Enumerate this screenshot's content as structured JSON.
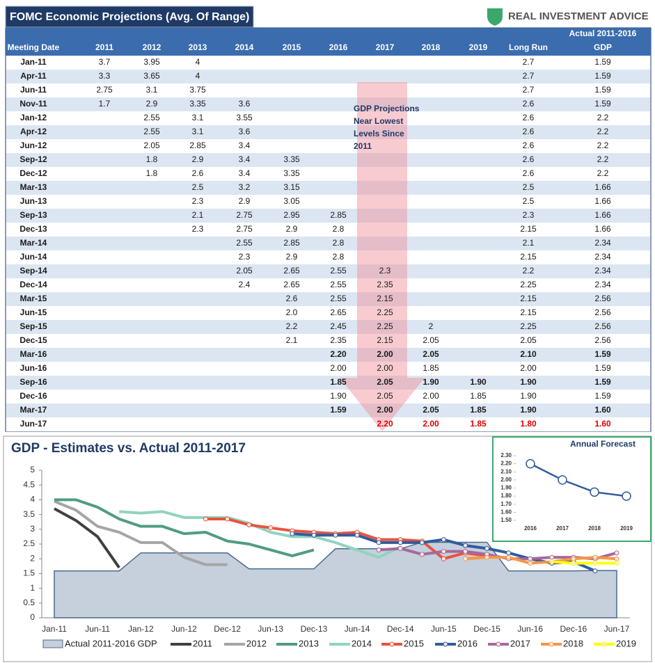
{
  "header": {
    "title": "FOMC Economic Projections (Avg. Of Range)",
    "brand": "REAL INVESTMENT ADVICE"
  },
  "table": {
    "group_header": "Actual 2011-2016",
    "columns": [
      "Meeting Date",
      "2011",
      "2012",
      "2013",
      "2014",
      "2015",
      "2016",
      "2017",
      "2018",
      "2019",
      "Long Run",
      "GDP"
    ],
    "annotation": [
      "GDP Projections",
      "Near Lowest",
      "Levels  Since",
      "2011"
    ],
    "rows": [
      [
        "Jan-11",
        "3.7",
        "3.95",
        "4",
        null,
        null,
        null,
        null,
        null,
        null,
        "2.7",
        "1.59"
      ],
      [
        "Apr-11",
        "3.3",
        "3.65",
        "4",
        null,
        null,
        null,
        null,
        null,
        null,
        "2.7",
        "1.59"
      ],
      [
        "Jun-11",
        "2.75",
        "3.1",
        "3.75",
        null,
        null,
        null,
        null,
        null,
        null,
        "2.7",
        "1.59"
      ],
      [
        "Nov-11",
        "1.7",
        "2.9",
        "3.35",
        "3.6",
        null,
        null,
        null,
        null,
        null,
        "2.6",
        "1.59"
      ],
      [
        "Jan-12",
        null,
        "2.55",
        "3.1",
        "3.55",
        null,
        null,
        null,
        null,
        null,
        "2.6",
        "2.2"
      ],
      [
        "Apr-12",
        null,
        "2.55",
        "3.1",
        "3.6",
        null,
        null,
        null,
        null,
        null,
        "2.6",
        "2.2"
      ],
      [
        "Jun-12",
        null,
        "2.05",
        "2.85",
        "3.4",
        null,
        null,
        null,
        null,
        null,
        "2.6",
        "2.2"
      ],
      [
        "Sep-12",
        null,
        "1.8",
        "2.9",
        "3.4",
        "3.35",
        null,
        null,
        null,
        null,
        "2.6",
        "2.2"
      ],
      [
        "Dec-12",
        null,
        "1.8",
        "2.6",
        "3.4",
        "3.35",
        null,
        null,
        null,
        null,
        "2.6",
        "2.2"
      ],
      [
        "Mar-13",
        null,
        null,
        "2.5",
        "3.2",
        "3.15",
        null,
        null,
        null,
        null,
        "2.5",
        "1.66"
      ],
      [
        "Jun-13",
        null,
        null,
        "2.3",
        "2.9",
        "3.05",
        null,
        null,
        null,
        null,
        "2.5",
        "1.66"
      ],
      [
        "Sep-13",
        null,
        null,
        "2.1",
        "2.75",
        "2.95",
        "2.85",
        null,
        null,
        null,
        "2.3",
        "1.66"
      ],
      [
        "Dec-13",
        null,
        null,
        "2.3",
        "2.75",
        "2.9",
        "2.8",
        null,
        null,
        null,
        "2.15",
        "1.66"
      ],
      [
        "Mar-14",
        null,
        null,
        null,
        "2.55",
        "2.85",
        "2.8",
        null,
        null,
        null,
        "2.1",
        "2.34"
      ],
      [
        "Jun-14",
        null,
        null,
        null,
        "2.3",
        "2.9",
        "2.8",
        null,
        null,
        null,
        "2.15",
        "2.34"
      ],
      [
        "Sep-14",
        null,
        null,
        null,
        "2.05",
        "2.65",
        "2.55",
        "2.3",
        null,
        null,
        "2.2",
        "2.34"
      ],
      [
        "Dec-14",
        null,
        null,
        null,
        "2.4",
        "2.65",
        "2.55",
        "2.35",
        null,
        null,
        "2.25",
        "2.34"
      ],
      [
        "Mar-15",
        null,
        null,
        null,
        null,
        "2.6",
        "2.55",
        "2.15",
        null,
        null,
        "2.15",
        "2.56"
      ],
      [
        "Jun-15",
        null,
        null,
        null,
        null,
        "2.0",
        "2.65",
        "2.25",
        null,
        null,
        "2.15",
        "2.56"
      ],
      [
        "Sep-15",
        null,
        null,
        null,
        null,
        "2.2",
        "2.45",
        "2.25",
        "2",
        null,
        "2.25",
        "2.56"
      ],
      [
        "Dec-15",
        null,
        null,
        null,
        null,
        "2.1",
        "2.35",
        "2.15",
        "2.05",
        null,
        "2.05",
        "2.56"
      ],
      [
        "Mar-16",
        null,
        null,
        null,
        null,
        null,
        "2.20",
        "2.00",
        "2.05",
        null,
        "2.10",
        "1.59"
      ],
      [
        "Jun-16",
        null,
        null,
        null,
        null,
        null,
        "2.00",
        "2.00",
        "1.85",
        null,
        "2.00",
        "1.59"
      ],
      [
        "Sep-16",
        null,
        null,
        null,
        null,
        null,
        "1.85",
        "2.05",
        "1.90",
        "1.90",
        "1.90",
        "1.59"
      ],
      [
        "Dec-16",
        null,
        null,
        null,
        null,
        null,
        "1.90",
        "2.05",
        "2.00",
        "1.85",
        "1.90",
        "1.59"
      ],
      [
        "Mar-17",
        null,
        null,
        null,
        null,
        null,
        "1.59",
        "2.00",
        "2.05",
        "1.85",
        "1.90",
        "1.60"
      ],
      [
        "Jun-17",
        null,
        null,
        null,
        null,
        null,
        null,
        "2.20",
        "2.00",
        "1.85",
        "1.80",
        "1.60"
      ]
    ]
  },
  "chart_data": [
    {
      "type": "line",
      "title": "GDP - Estimates vs. Actual 2011-2017",
      "categories": [
        "Jan-11",
        null,
        "Jun-11",
        null,
        "Jan-12",
        null,
        "Jun-12",
        null,
        "Dec-12",
        null,
        "Jun-13",
        null,
        "Dec-13",
        null,
        "Jun-14",
        null,
        "Dec-14",
        null,
        "Jun-15",
        null,
        "Dec-15",
        null,
        "Jun-16",
        null,
        "Dec-16",
        null,
        "Jun-17"
      ],
      "ylim": [
        0,
        5
      ],
      "yticks": [
        0,
        0.5,
        1,
        1.5,
        2,
        2.5,
        3,
        3.5,
        4,
        4.5,
        5
      ],
      "series": [
        {
          "name": "Actual 2011-2016 GDP",
          "kind": "area",
          "color": "#c5d0dc",
          "values": [
            1.59,
            1.59,
            1.59,
            1.59,
            2.2,
            2.2,
            2.2,
            2.2,
            2.2,
            1.66,
            1.66,
            1.66,
            1.66,
            2.34,
            2.34,
            2.34,
            2.34,
            2.56,
            2.56,
            2.56,
            2.56,
            1.59,
            1.59,
            1.59,
            1.59,
            1.6,
            1.6
          ]
        },
        {
          "name": "2011",
          "kind": "line",
          "color": "#404040",
          "markers": false,
          "values": [
            3.7,
            3.3,
            2.75,
            1.7,
            null,
            null,
            null,
            null,
            null,
            null,
            null,
            null,
            null,
            null,
            null,
            null,
            null,
            null,
            null,
            null,
            null,
            null,
            null,
            null,
            null,
            null,
            null
          ]
        },
        {
          "name": "2012",
          "kind": "line",
          "color": "#a5a5a5",
          "markers": false,
          "values": [
            3.95,
            3.65,
            3.1,
            2.9,
            2.55,
            2.55,
            2.05,
            1.8,
            1.8,
            null,
            null,
            null,
            null,
            null,
            null,
            null,
            null,
            null,
            null,
            null,
            null,
            null,
            null,
            null,
            null,
            null,
            null
          ]
        },
        {
          "name": "2013",
          "kind": "line",
          "color": "#4f9c82",
          "markers": false,
          "values": [
            4,
            4,
            3.75,
            3.35,
            3.1,
            3.1,
            2.85,
            2.9,
            2.6,
            2.5,
            2.3,
            2.1,
            2.3,
            null,
            null,
            null,
            null,
            null,
            null,
            null,
            null,
            null,
            null,
            null,
            null,
            null,
            null
          ]
        },
        {
          "name": "2014",
          "kind": "line",
          "color": "#8fd4bf",
          "markers": false,
          "values": [
            null,
            null,
            null,
            3.6,
            3.55,
            3.6,
            3.4,
            3.4,
            3.4,
            3.2,
            2.9,
            2.75,
            2.75,
            2.55,
            2.3,
            2.05,
            2.4,
            null,
            null,
            null,
            null,
            null,
            null,
            null,
            null,
            null,
            null
          ]
        },
        {
          "name": "2015",
          "kind": "line",
          "color": "#e8533f",
          "markers": true,
          "values": [
            null,
            null,
            null,
            null,
            null,
            null,
            null,
            3.35,
            3.35,
            3.15,
            3.05,
            2.95,
            2.9,
            2.85,
            2.9,
            2.65,
            2.65,
            2.6,
            2.0,
            2.2,
            2.1,
            null,
            null,
            null,
            null,
            null,
            null
          ]
        },
        {
          "name": "2016",
          "kind": "line",
          "color": "#2f5c9e",
          "markers": true,
          "values": [
            null,
            null,
            null,
            null,
            null,
            null,
            null,
            null,
            null,
            null,
            null,
            2.85,
            2.8,
            2.8,
            2.8,
            2.55,
            2.55,
            2.55,
            2.65,
            2.45,
            2.35,
            2.2,
            2.0,
            1.85,
            1.9,
            1.59,
            null
          ]
        },
        {
          "name": "2017",
          "kind": "line",
          "color": "#a7689d",
          "markers": true,
          "values": [
            null,
            null,
            null,
            null,
            null,
            null,
            null,
            null,
            null,
            null,
            null,
            null,
            null,
            null,
            null,
            2.3,
            2.35,
            2.15,
            2.25,
            2.25,
            2.15,
            2.0,
            2.0,
            2.05,
            2.05,
            2.0,
            2.2
          ]
        },
        {
          "name": "2018",
          "kind": "line",
          "color": "#f79646",
          "markers": true,
          "values": [
            null,
            null,
            null,
            null,
            null,
            null,
            null,
            null,
            null,
            null,
            null,
            null,
            null,
            null,
            null,
            null,
            null,
            null,
            null,
            2,
            2.05,
            2.05,
            1.85,
            1.9,
            2.0,
            2.05,
            2.0
          ]
        },
        {
          "name": "2019",
          "kind": "line",
          "color": "#ffff00",
          "markers": true,
          "values": [
            null,
            null,
            null,
            null,
            null,
            null,
            null,
            null,
            null,
            null,
            null,
            null,
            null,
            null,
            null,
            null,
            null,
            null,
            null,
            null,
            null,
            null,
            null,
            1.9,
            1.85,
            1.85,
            1.85
          ]
        }
      ]
    },
    {
      "type": "line",
      "title": "Annual Forecast",
      "categories": [
        "2016",
        "2017",
        "2018",
        "2019"
      ],
      "color": "#2f5c9e",
      "values": [
        2.2,
        2.0,
        1.85,
        1.8
      ],
      "ylim": [
        1.5,
        2.3
      ],
      "yticks": [
        {
          "value": 1.5,
          "label": "1.50"
        },
        {
          "value": 1.6,
          "label": "1.60"
        },
        {
          "value": 1.7,
          "label": "1.70"
        },
        {
          "value": 1.8,
          "label": "1.80"
        },
        {
          "value": 1.9,
          "label": "1.90"
        },
        {
          "value": 2.0,
          "label": "2.00"
        },
        {
          "value": 2.1,
          "label": "2.10"
        },
        {
          "value": 2.2,
          "label": "2.20"
        },
        {
          "value": 2.3,
          "label": "2.30"
        }
      ]
    }
  ]
}
